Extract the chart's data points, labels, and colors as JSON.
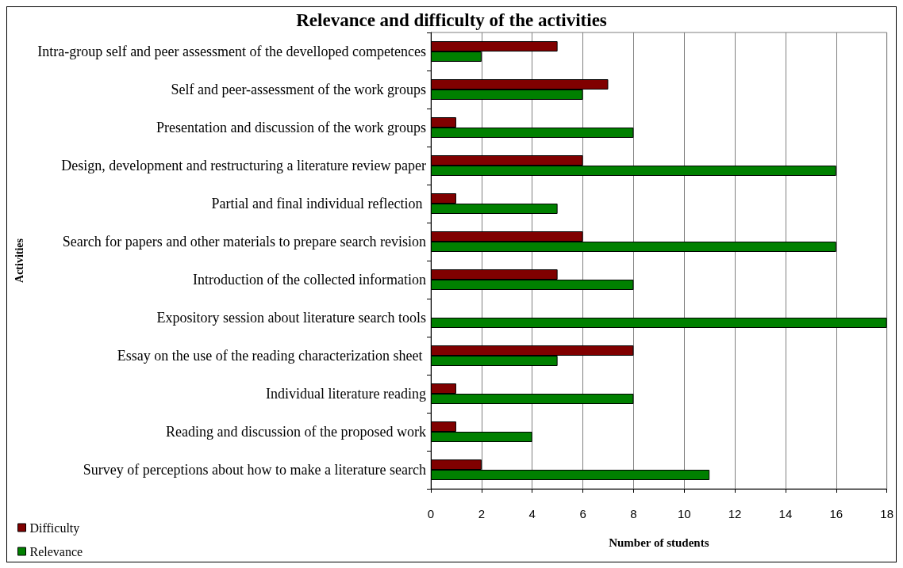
{
  "chart_data": {
    "type": "bar",
    "orientation": "horizontal",
    "title": "Relevance and difficulty of the activities",
    "xlabel": "Number of students",
    "ylabel": "Activities",
    "categories": [
      "Intra-group self and peer assessment of the develloped competences",
      "Self and peer-assessment of the work groups",
      "Presentation and discussion of the work groups",
      "Design, development and restructuring a literature review paper",
      "Partial and final individual reflection ",
      "Search for papers and other materials to prepare search revision",
      "Introduction of the collected information",
      "Expository session about literature search tools",
      "Essay on the use of the reading characterization sheet ",
      "Individual literature reading",
      "Reading and discussion of the proposed work",
      "Survey of perceptions about how to make a literature search"
    ],
    "series": [
      {
        "name": "Difficulty",
        "color": "#800000",
        "values": [
          5,
          7,
          1,
          6,
          1,
          6,
          5,
          null,
          8,
          1,
          1,
          2
        ]
      },
      {
        "name": "Relevance",
        "color": "#008000",
        "values": [
          2,
          6,
          8,
          16,
          5,
          16,
          8,
          18,
          5,
          8,
          4,
          11
        ]
      }
    ],
    "xlim": [
      0,
      18
    ],
    "xticks": [
      0,
      2,
      4,
      6,
      8,
      10,
      12,
      14,
      16,
      18
    ],
    "grid": "x",
    "legend": "bottom left"
  }
}
